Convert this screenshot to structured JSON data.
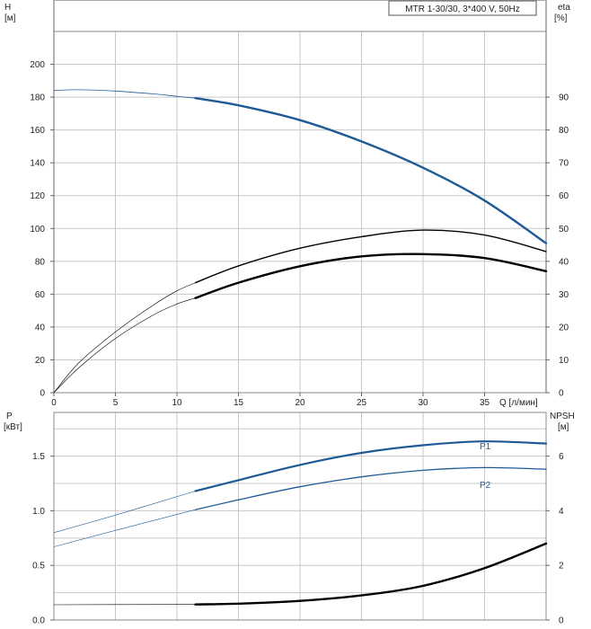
{
  "chart_data": {
    "type": "line",
    "title": "MTR 1-30/30, 3*400 V, 50Hz",
    "x_axis": {
      "label": "Q [л/мин]",
      "range": [
        0,
        40
      ],
      "ticks": [
        0,
        5,
        10,
        15,
        20,
        25,
        30,
        35
      ]
    },
    "colors": {
      "head": "#1f5a96",
      "power": "#1f5a96",
      "efficiency": "#000000",
      "npsh": "#000000",
      "grid": "#c8c8c8"
    },
    "top_panel": {
      "left_axis": {
        "label_line1": "H",
        "label_line2": "[м]",
        "range": [
          0,
          220
        ],
        "ticks": [
          0,
          20,
          40,
          60,
          80,
          100,
          120,
          140,
          160,
          180,
          200
        ]
      },
      "right_axis": {
        "label_line1": "eta",
        "label_line2": "[%]",
        "range": [
          0,
          110
        ],
        "ticks": [
          0,
          10,
          20,
          30,
          40,
          50,
          60,
          70,
          80,
          90
        ]
      },
      "series": [
        {
          "kind": "head",
          "axis": "left",
          "x": [
            0,
            2,
            5,
            8,
            10,
            11.5,
            15,
            20,
            25,
            30,
            35,
            40
          ],
          "y": [
            184,
            184.5,
            183.7,
            182,
            180.5,
            179.4,
            175,
            166,
            153,
            137,
            117,
            91
          ]
        },
        {
          "kind": "eta-upper",
          "axis": "right",
          "x": [
            0,
            2,
            5,
            8,
            10,
            11.5,
            15,
            20,
            25,
            30,
            35,
            40
          ],
          "y": [
            0,
            9,
            18.5,
            26.5,
            31,
            33.5,
            38.6,
            44,
            47.5,
            49.5,
            48,
            43
          ]
        },
        {
          "kind": "eta-lower",
          "axis": "right",
          "x": [
            0,
            2,
            5,
            8,
            10,
            11.5,
            15,
            20,
            25,
            30,
            35,
            40
          ],
          "y": [
            0,
            7.5,
            16.5,
            23.5,
            27,
            28.8,
            33.5,
            38.5,
            41.5,
            42.2,
            41,
            37
          ]
        }
      ]
    },
    "bottom_panel": {
      "left_axis": {
        "label_line1": "P",
        "label_line2": "[кВт]",
        "range": [
          0,
          1.9
        ],
        "ticks": [
          "0.0",
          "0.5",
          "1.0",
          "1.5"
        ]
      },
      "right_axis": {
        "label_line1": "NPSH",
        "label_line2": "[м]",
        "range": [
          0,
          7.6
        ],
        "ticks": [
          0,
          2,
          4,
          6
        ]
      },
      "series": [
        {
          "name": "P1",
          "axis": "left",
          "x": [
            0,
            5,
            11.5,
            15,
            20,
            25,
            30,
            35,
            40
          ],
          "y": [
            0.8,
            0.96,
            1.18,
            1.28,
            1.42,
            1.53,
            1.6,
            1.635,
            1.615
          ]
        },
        {
          "name": "P2",
          "axis": "left",
          "x": [
            0,
            5,
            11.5,
            15,
            20,
            25,
            30,
            35,
            40
          ],
          "y": [
            0.67,
            0.82,
            1.01,
            1.1,
            1.22,
            1.31,
            1.37,
            1.395,
            1.38
          ]
        },
        {
          "kind": "npsh",
          "axis": "right",
          "x": [
            0,
            11.5,
            15,
            20,
            25,
            30,
            35,
            40
          ],
          "y": [
            0.56,
            0.57,
            0.6,
            0.7,
            0.9,
            1.25,
            1.9,
            2.8
          ]
        }
      ]
    }
  }
}
